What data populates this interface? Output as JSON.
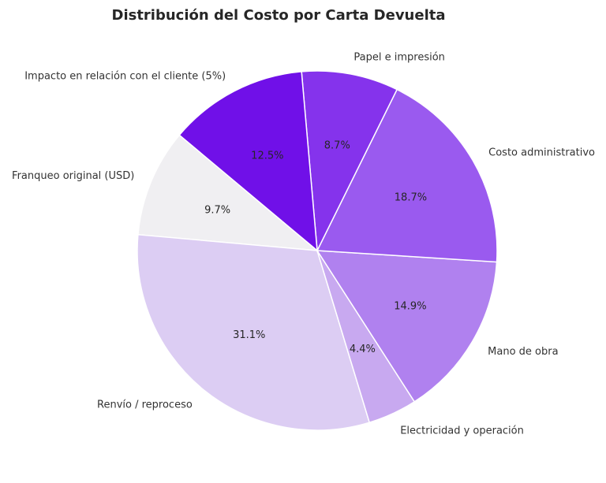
{
  "chart_data": {
    "type": "pie",
    "title": "Distribución del Costo por Carta Devuelta",
    "start_angle_deg": 140,
    "direction": "counterclockwise",
    "slices": [
      {
        "label": "Franqueo original (USD)",
        "value": 9.7,
        "pct_label": "9.7%",
        "color": "#f0eff2"
      },
      {
        "label": "Renvío / reproceso",
        "value": 31.1,
        "pct_label": "31.1%",
        "color": "#dccdf3"
      },
      {
        "label": "Electricidad y operación",
        "value": 4.4,
        "pct_label": "4.4%",
        "color": "#c8a9f0"
      },
      {
        "label": "Mano de obra",
        "value": 14.9,
        "pct_label": "14.9%",
        "color": "#b081ef"
      },
      {
        "label": "Costo administrativo",
        "value": 18.7,
        "pct_label": "18.7%",
        "color": "#9a5aef"
      },
      {
        "label": "Papel e impresión",
        "value": 8.7,
        "pct_label": "8.7%",
        "color": "#8533ec"
      },
      {
        "label": "Impacto en relación con el cliente (5%)",
        "value": 12.5,
        "pct_label": "12.5%",
        "color": "#7010e8"
      }
    ]
  }
}
